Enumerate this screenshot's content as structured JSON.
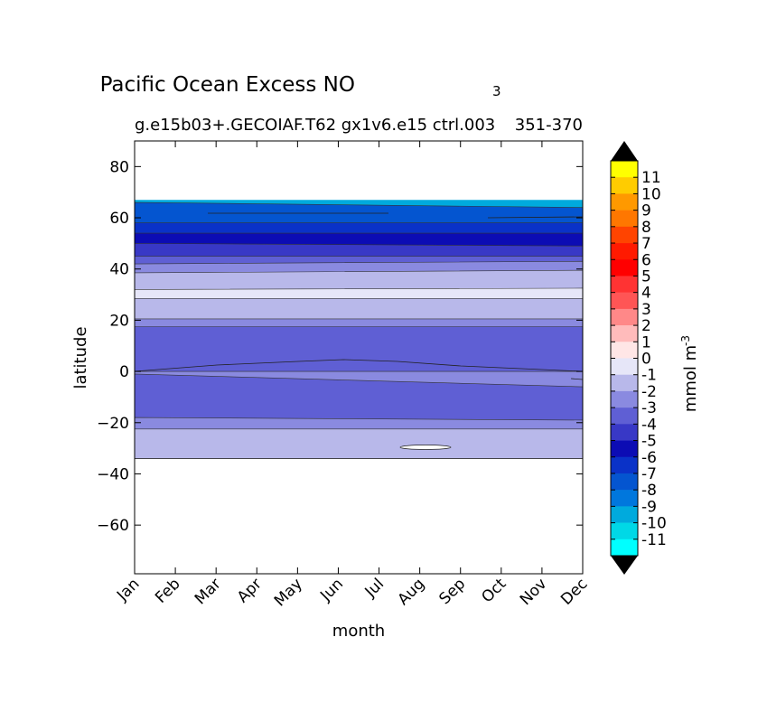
{
  "chart_data": {
    "type": "heatmap",
    "title_main": "Pacific Ocean Excess NO",
    "title_sub": "3",
    "subtitle": "g.e15b03+.GECOIAF.T62 gx1v6.e15 ctrl.003",
    "subtitle_right": "351-370",
    "xlabel": "month",
    "ylabel": "latitude",
    "x_categories": [
      "Jan",
      "Feb",
      "Mar",
      "Apr",
      "May",
      "Jun",
      "Jul",
      "Aug",
      "Sep",
      "Oct",
      "Nov",
      "Dec"
    ],
    "y_ticks": [
      80,
      60,
      40,
      20,
      0,
      -20,
      -40,
      -60
    ],
    "ylim": [
      -79,
      90
    ],
    "grid": false,
    "data_lat_range": [
      -34,
      67
    ],
    "colorbar_label": "mmol m",
    "colorbar_label_exp": "-3",
    "colorbar_ticks": [
      "11",
      "10",
      "9",
      "8",
      "7",
      "6",
      "5",
      "4",
      "3",
      "2",
      "1",
      "0",
      "-1",
      "-2",
      "-3",
      "-4",
      "-5",
      "-6",
      "-7",
      "-8",
      "-9",
      "-10",
      "-11"
    ],
    "colorbar_levels_top_to_bottom": [
      "#ffff00",
      "#ffcc00",
      "#ff9900",
      "#ff7700",
      "#ff4400",
      "#ff1a00",
      "#ff0000",
      "#ff3333",
      "#ff5555",
      "#ff8888",
      "#ffbbbb",
      "#ffe6e6",
      "#e6e6f8",
      "#b8b8ea",
      "#8a8ae0",
      "#5f5fd4",
      "#3838c6",
      "#0c0cb4",
      "#0a32c8",
      "#0455d0",
      "#0077dd",
      "#00aadd",
      "#00d8e6",
      "#00ffff"
    ],
    "colorbar_extend_color": "#000000",
    "bands": [
      {
        "lat_top_start": 67,
        "lat_top_end": 67,
        "color": "#00aadd"
      },
      {
        "lat_top_start": 66,
        "lat_top_end": 64,
        "color": "#0455d0"
      },
      {
        "lat_top_start": 58,
        "lat_top_end": 58,
        "color": "#0a32c8"
      },
      {
        "lat_top_start": 54,
        "lat_top_end": 54,
        "color": "#0c0cb4"
      },
      {
        "lat_top_start": 50,
        "lat_top_end": 49,
        "color": "#3838c6"
      },
      {
        "lat_top_start": 45,
        "lat_top_end": 45,
        "color": "#5f5fd4"
      },
      {
        "lat_top_start": 42,
        "lat_top_end": 43,
        "color": "#8a8ae0"
      },
      {
        "lat_top_start": 38.5,
        "lat_top_end": 39.5,
        "color": "#b8b8ea"
      },
      {
        "lat_top_start": 32,
        "lat_top_end": 32.5,
        "color": "#e6e6f8"
      },
      {
        "lat_top_start": 28.5,
        "lat_top_end": 28.5,
        "color": "#b8b8ea"
      },
      {
        "lat_top_start": 20.5,
        "lat_top_end": 20.5,
        "color": "#8a8ae0"
      },
      {
        "lat_top_start": 17.5,
        "lat_top_end": 17.5,
        "color": "#5f5fd4"
      },
      {
        "lat_top_start": 0,
        "lat_top_end": 0,
        "color": "#8a8ae0"
      },
      {
        "lat_top_start": -1,
        "lat_top_end": -6,
        "color": "#5f5fd4"
      },
      {
        "lat_top_start": -18,
        "lat_top_end": -19,
        "color": "#8a8ae0"
      },
      {
        "lat_top_start": -22.5,
        "lat_top_end": -22.5,
        "color": "#b8b8ea"
      }
    ]
  }
}
